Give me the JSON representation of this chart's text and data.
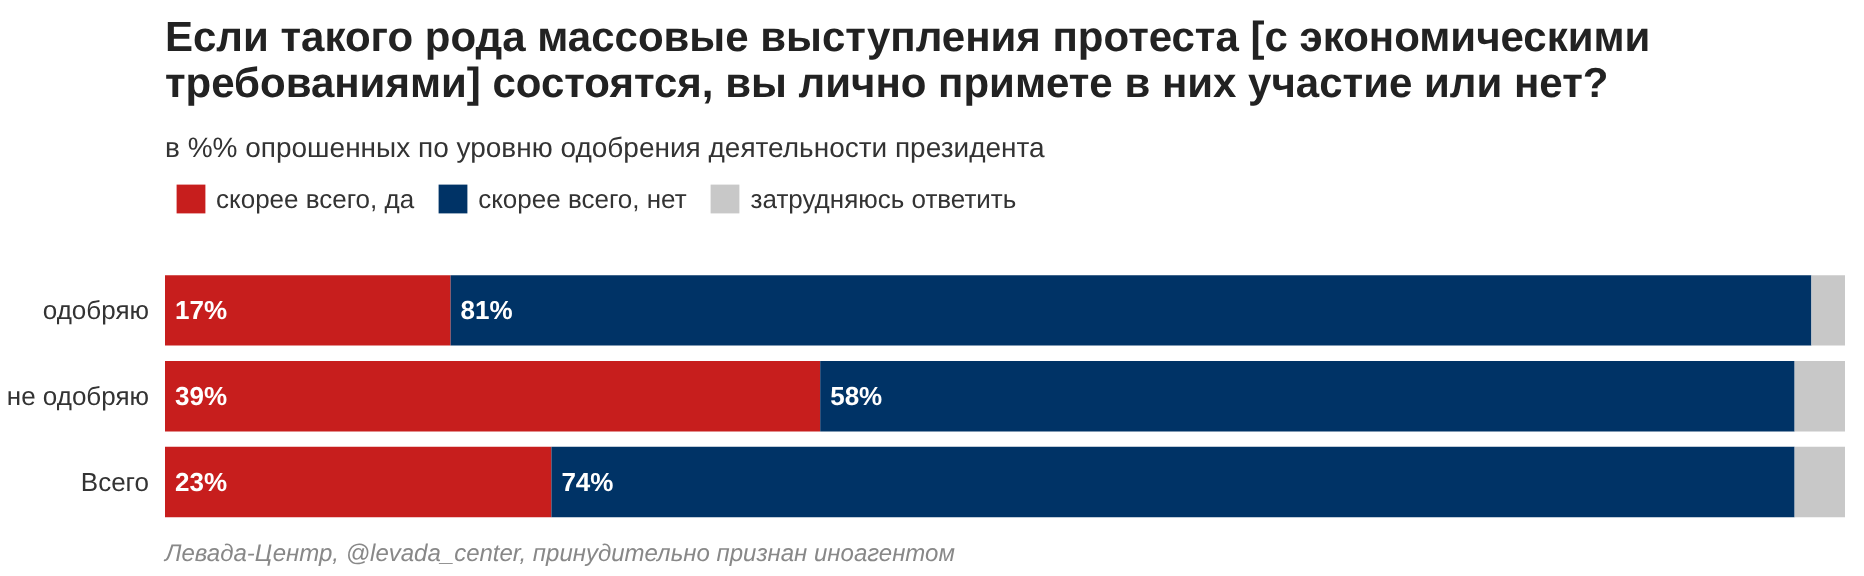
{
  "chart_data": {
    "type": "bar",
    "orientation": "horizontal",
    "stacked": true,
    "title": "Если такого рода массовые выступления протеста [с экономическими требованиями] состоятся, вы лично примете в них участие или нет?",
    "subtitle": "в %% опрошенных по уровню одобрения деятельности президента",
    "categories": [
      "одобряю",
      "не одобряю",
      "Всего"
    ],
    "series": [
      {
        "name": "скорее всего, да",
        "color": "#c71e1d",
        "values": [
          17,
          39,
          23
        ],
        "value_labels": [
          "17%",
          "39%",
          "23%"
        ]
      },
      {
        "name": "скорее всего, нет",
        "color": "#003366",
        "values": [
          81,
          58,
          74
        ],
        "value_labels": [
          "81%",
          "58%",
          "74%"
        ]
      },
      {
        "name": "затрудняюсь ответить",
        "color": "#c8c8c8",
        "values": [
          2,
          3,
          3
        ],
        "value_labels": [
          null,
          null,
          null
        ]
      }
    ],
    "legend": "top left",
    "grid": false,
    "tick_labels": "y",
    "annotations": [
      "Левада-Центр, @levada_center, принудительно признан иноагентом"
    ]
  }
}
